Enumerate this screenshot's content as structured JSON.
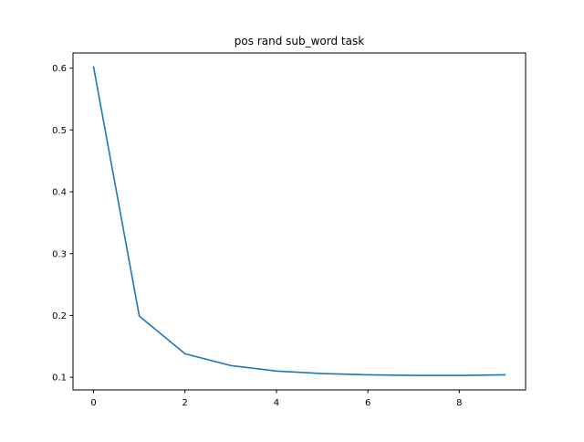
{
  "chart_data": {
    "type": "line",
    "title": "pos rand sub_word task",
    "xlabel": "",
    "ylabel": "",
    "x": [
      0,
      1,
      2,
      3,
      4,
      5,
      6,
      7,
      8,
      9
    ],
    "series": [
      {
        "values": [
          0.602,
          0.199,
          0.138,
          0.119,
          0.11,
          0.106,
          0.104,
          0.103,
          0.103,
          0.104
        ],
        "color": "#1f77b4"
      }
    ],
    "xlim": [
      -0.45,
      9.45
    ],
    "ylim": [
      0.0795,
      0.6245
    ],
    "xticks": [
      0,
      2,
      4,
      6,
      8
    ],
    "xtick_labels": [
      "0",
      "2",
      "4",
      "6",
      "8"
    ],
    "yticks": [
      0.1,
      0.2,
      0.3,
      0.4,
      0.5,
      0.6
    ],
    "ytick_labels": [
      "0.1",
      "0.2",
      "0.3",
      "0.4",
      "0.5",
      "0.6"
    ],
    "grid": false,
    "legend": "none"
  }
}
